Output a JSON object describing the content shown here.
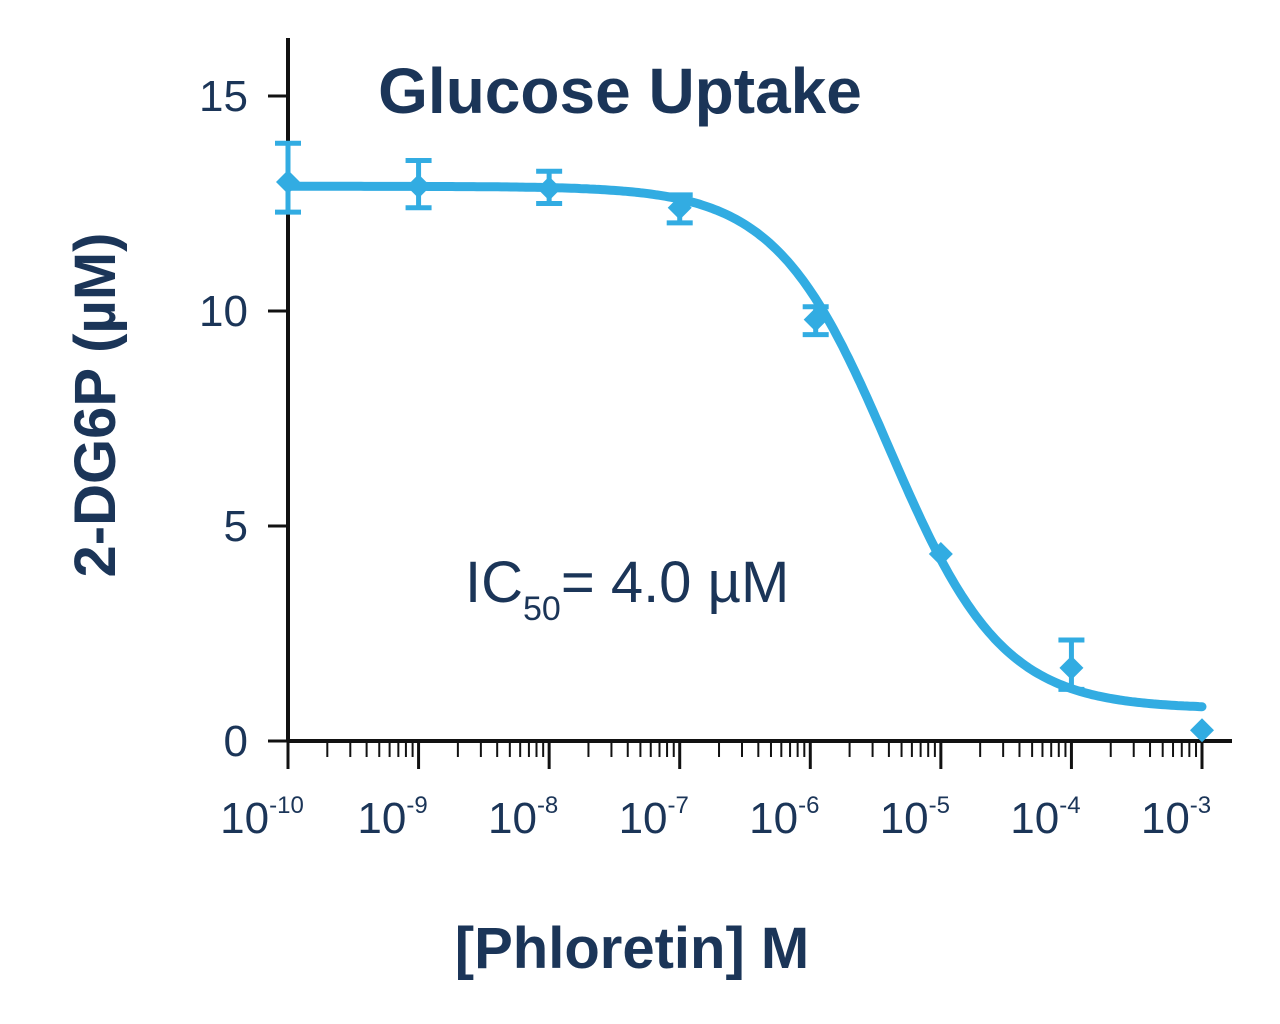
{
  "chart_data": {
    "type": "scatter",
    "title": "Glucose Uptake",
    "xlabel": "[Phloretin] M",
    "ylabel": "2-DG6P (µM)",
    "x_scale": "log",
    "xlim": [
      1e-10,
      0.001
    ],
    "ylim": [
      0,
      15
    ],
    "y_ticks": [
      0,
      5,
      10,
      15
    ],
    "x_ticks": [
      {
        "base": "10",
        "exp": "-10"
      },
      {
        "base": "10",
        "exp": "-9"
      },
      {
        "base": "10",
        "exp": "-8"
      },
      {
        "base": "10",
        "exp": "-7"
      },
      {
        "base": "10",
        "exp": "-6"
      },
      {
        "base": "10",
        "exp": "-5"
      },
      {
        "base": "10",
        "exp": "-4"
      },
      {
        "base": "10",
        "exp": "-3"
      }
    ],
    "series": [
      {
        "x": [
          1e-10,
          1e-09,
          1e-08,
          1e-07,
          1.1e-06,
          1e-05,
          0.0001,
          0.001
        ],
        "y": [
          13.0,
          12.9,
          12.85,
          12.4,
          9.8,
          4.35,
          1.7,
          0.25
        ],
        "err_low": [
          0.7,
          0.5,
          0.35,
          0.35,
          0.35,
          0.0,
          0.5,
          0.0
        ],
        "err_high": [
          0.9,
          0.6,
          0.4,
          0.3,
          0.3,
          0.0,
          0.65,
          0.0
        ]
      }
    ],
    "fit": {
      "model": "four-parameter logistic",
      "top": 12.9,
      "bottom": 0.75,
      "ic50": 4e-06,
      "hill": 1.0
    },
    "annotation": {
      "main": "IC",
      "sub": "50",
      "rest": "= 4.0 µM"
    },
    "colors": {
      "series": "#32ace2",
      "text": "#1b3558",
      "axis": "#111111"
    },
    "grid": false,
    "marker": "diamond"
  }
}
